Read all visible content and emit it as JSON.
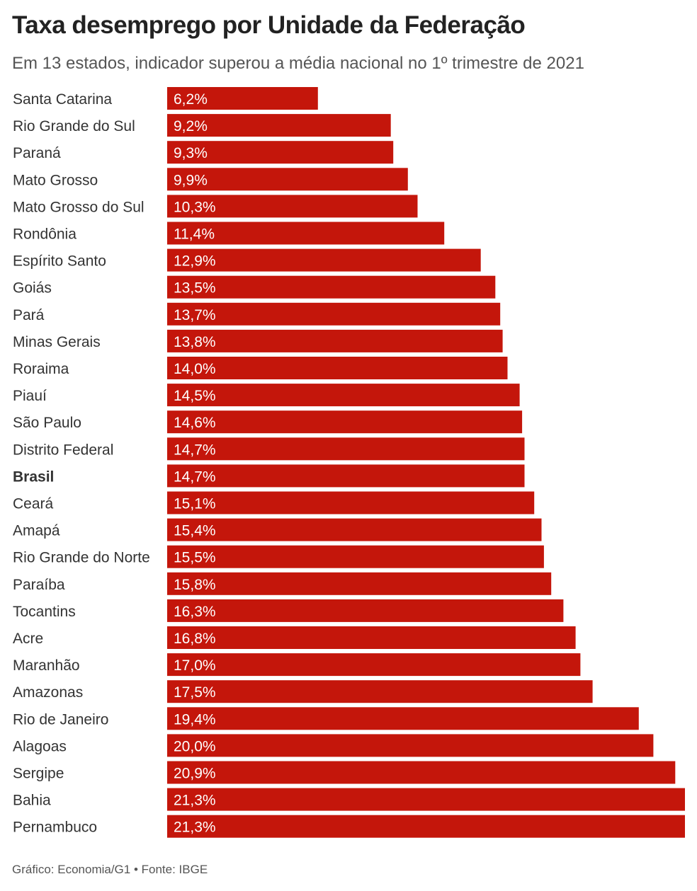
{
  "title": "Taxa desemprego por Unidade da Federação",
  "subtitle": "Em 13 estados, indicador superou a média nacional no 1º trimestre de 2021",
  "footer": "Gráfico: Economia/G1 • Fonte: IBGE",
  "colors": {
    "bar": "#c4160b",
    "bar_label": "#ffffff",
    "category_label": "#333333"
  },
  "chart_data": {
    "type": "bar",
    "orientation": "horizontal",
    "categories": [
      "Santa Catarina",
      "Rio Grande do Sul",
      "Paraná",
      "Mato Grosso",
      "Mato Grosso do Sul",
      "Rondônia",
      "Espírito Santo",
      "Goiás",
      "Pará",
      "Minas Gerais",
      "Roraima",
      "Piauí",
      "São Paulo",
      "Distrito Federal",
      "Brasil",
      "Ceará",
      "Amapá",
      "Rio Grande do Norte",
      "Paraíba",
      "Tocantins",
      "Acre",
      "Maranhão",
      "Amazonas",
      "Rio de Janeiro",
      "Alagoas",
      "Sergipe",
      "Bahia",
      "Pernambuco"
    ],
    "values": [
      6.2,
      9.2,
      9.3,
      9.9,
      10.3,
      11.4,
      12.9,
      13.5,
      13.7,
      13.8,
      14.0,
      14.5,
      14.6,
      14.7,
      14.7,
      15.1,
      15.4,
      15.5,
      15.8,
      16.3,
      16.8,
      17.0,
      17.5,
      19.4,
      20.0,
      20.9,
      21.3,
      21.3
    ],
    "value_labels": [
      "6,2%",
      "9,2%",
      "9,3%",
      "9,9%",
      "10,3%",
      "11,4%",
      "12,9%",
      "13,5%",
      "13,7%",
      "13,8%",
      "14,0%",
      "14,5%",
      "14,6%",
      "14,7%",
      "14,7%",
      "15,1%",
      "15,4%",
      "15,5%",
      "15,8%",
      "16,3%",
      "16,8%",
      "17,0%",
      "17,5%",
      "19,4%",
      "20,0%",
      "20,9%",
      "21,3%",
      "21,3%"
    ],
    "highlight_category": "Brasil",
    "xlim": [
      0,
      21.3
    ],
    "grid": false,
    "legend": "none"
  }
}
